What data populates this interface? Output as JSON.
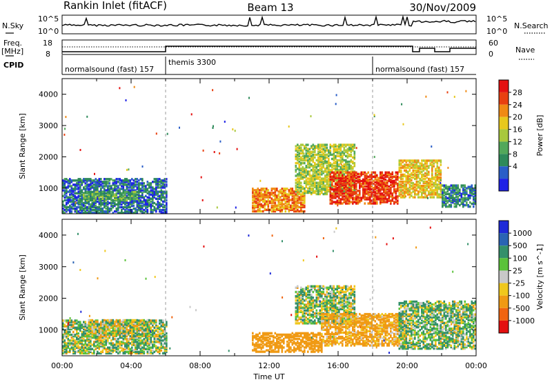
{
  "header": {
    "site": "Rankin Inlet (fitACF)",
    "beam": "Beam 13",
    "date": "30/Nov/2009"
  },
  "strips": {
    "nsky_label": "N.Sky",
    "nsearch_label": "N.Search",
    "nsky_ticks": [
      "10^5",
      "10^0"
    ],
    "nsearch_ticks": [
      "10^5",
      "10^0"
    ],
    "freq_label_top": "Freq.",
    "freq_label_unit": "[MHz]",
    "freq_ticks": [
      "18",
      "8"
    ],
    "nave_label": "Nave",
    "nave_ticks": [
      "60",
      "0"
    ],
    "cpid_label": "CPID",
    "cpid_segments": [
      {
        "name": "normalsound (fast) 157",
        "start_h": 0,
        "end_h": 6
      },
      {
        "name": "themis 3300",
        "start_h": 6,
        "end_h": 18
      },
      {
        "name": "normalsound (fast) 157",
        "start_h": 18,
        "end_h": 24
      }
    ]
  },
  "chart_data": [
    {
      "type": "heatmap",
      "title": "Power",
      "ylabel": "Slant Range [km]",
      "xlabel": "Time UT",
      "xlim": [
        0,
        24
      ],
      "ylim": [
        180,
        4500
      ],
      "x_tick_labels": [
        "00:00",
        "04:00",
        "08:00",
        "12:00",
        "16:00",
        "20:00",
        "00:00"
      ],
      "y_ticks": [
        1000,
        2000,
        3000,
        4000
      ],
      "colorbar": {
        "label": "Power [dB]",
        "ticks": [
          "4",
          "8",
          "12",
          "16",
          "20",
          "24",
          "28"
        ],
        "colors": [
          "#1e22e6",
          "#2a5ec8",
          "#2e8a5a",
          "#52a85a",
          "#a8c83c",
          "#e8c81c",
          "#f08a14",
          "#e84010",
          "#e41010"
        ]
      },
      "regions": [
        {
          "t0": 0.0,
          "t1": 6.0,
          "r0": 200,
          "r1": 1300,
          "level": 4
        },
        {
          "t0": 1.0,
          "t1": 4.5,
          "r0": 600,
          "r1": 900,
          "level": 9
        },
        {
          "t0": 11.0,
          "t1": 14.0,
          "r0": 250,
          "r1": 1000,
          "level": 22
        },
        {
          "t0": 13.5,
          "t1": 17.0,
          "r0": 800,
          "r1": 2400,
          "level": 14
        },
        {
          "t0": 15.5,
          "t1": 19.5,
          "r0": 500,
          "r1": 1500,
          "level": 27
        },
        {
          "t0": 19.5,
          "t1": 22.0,
          "r0": 700,
          "r1": 1900,
          "level": 18
        },
        {
          "t0": 22.0,
          "t1": 24.0,
          "r0": 400,
          "r1": 1100,
          "level": 6
        }
      ]
    },
    {
      "type": "heatmap",
      "title": "Velocity",
      "ylabel": "Slant Range [km]",
      "xlabel": "Time UT",
      "xlim": [
        0,
        24
      ],
      "ylim": [
        180,
        4500
      ],
      "x_tick_labels": [
        "00:00",
        "04:00",
        "08:00",
        "12:00",
        "16:00",
        "20:00",
        "00:00"
      ],
      "y_ticks": [
        1000,
        2000,
        3000,
        4000
      ],
      "colorbar": {
        "label": "Velocity [m s^-1]",
        "ticks": [
          "1000",
          "500",
          "100",
          "25",
          "-25",
          "-100",
          "-500",
          "-1000"
        ],
        "colors": [
          "#1e2ad8",
          "#2a64b4",
          "#34906a",
          "#5ac23a",
          "#c8c8c8",
          "#f0c81c",
          "#f09a14",
          "#f06410",
          "#e41010"
        ]
      },
      "regions": [
        {
          "t0": 0.0,
          "t1": 6.0,
          "r0": 250,
          "r1": 1300,
          "level": 50
        },
        {
          "t0": 1.5,
          "t1": 5.0,
          "r0": 800,
          "r1": 1300,
          "level": 0
        },
        {
          "t0": 11.0,
          "t1": 15.0,
          "r0": 300,
          "r1": 900,
          "level": -300
        },
        {
          "t0": 13.5,
          "t1": 17.0,
          "r0": 1200,
          "r1": 2400,
          "level": 60
        },
        {
          "t0": 15.0,
          "t1": 20.0,
          "r0": 500,
          "r1": 1500,
          "level": -200
        },
        {
          "t0": 19.5,
          "t1": 24.0,
          "r0": 400,
          "r1": 1900,
          "level": 80
        }
      ]
    }
  ]
}
